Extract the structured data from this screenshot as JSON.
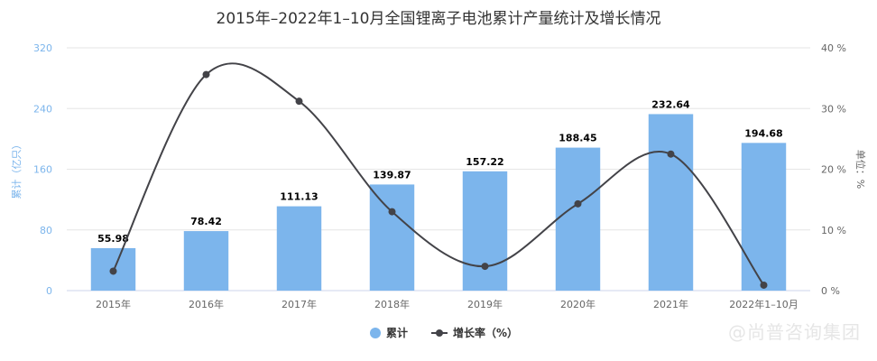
{
  "title": "2015年–2022年1–10月全国锂离子电池累计产量统计及增长情况",
  "watermark": "@尚普咨询集团",
  "colors": {
    "bar": "#7cb5ec",
    "line": "#434348",
    "left_axis": "#7cb5ec",
    "right_axis": "#666666",
    "grid": "#e6e6e6"
  },
  "chart_data": {
    "type": "bar",
    "categories": [
      "2015年",
      "2016年",
      "2017年",
      "2018年",
      "2019年",
      "2020年",
      "2021年",
      "2022年1–10月"
    ],
    "series": [
      {
        "name": "累计",
        "type": "bar",
        "axis": "left",
        "values": [
          55.98,
          78.42,
          111.13,
          139.87,
          157.22,
          188.45,
          232.64,
          194.68
        ]
      },
      {
        "name": "增长率（%）",
        "type": "line",
        "axis": "right",
        "values": [
          3.2,
          35.6,
          31.2,
          13.0,
          4.0,
          14.3,
          22.5,
          0.9
        ]
      }
    ],
    "ylabel_left": "累计（亿只）",
    "ylabel_right": "单位：%",
    "ylim_left": [
      0,
      320
    ],
    "yticks_left": [
      0,
      80,
      160,
      240,
      320
    ],
    "ylim_right": [
      0,
      40
    ],
    "yticks_right": [
      0,
      10,
      20,
      30,
      40
    ],
    "ytick_suffix_right": " %",
    "grid": true,
    "legend": "bottom-center",
    "data_labels": true
  }
}
